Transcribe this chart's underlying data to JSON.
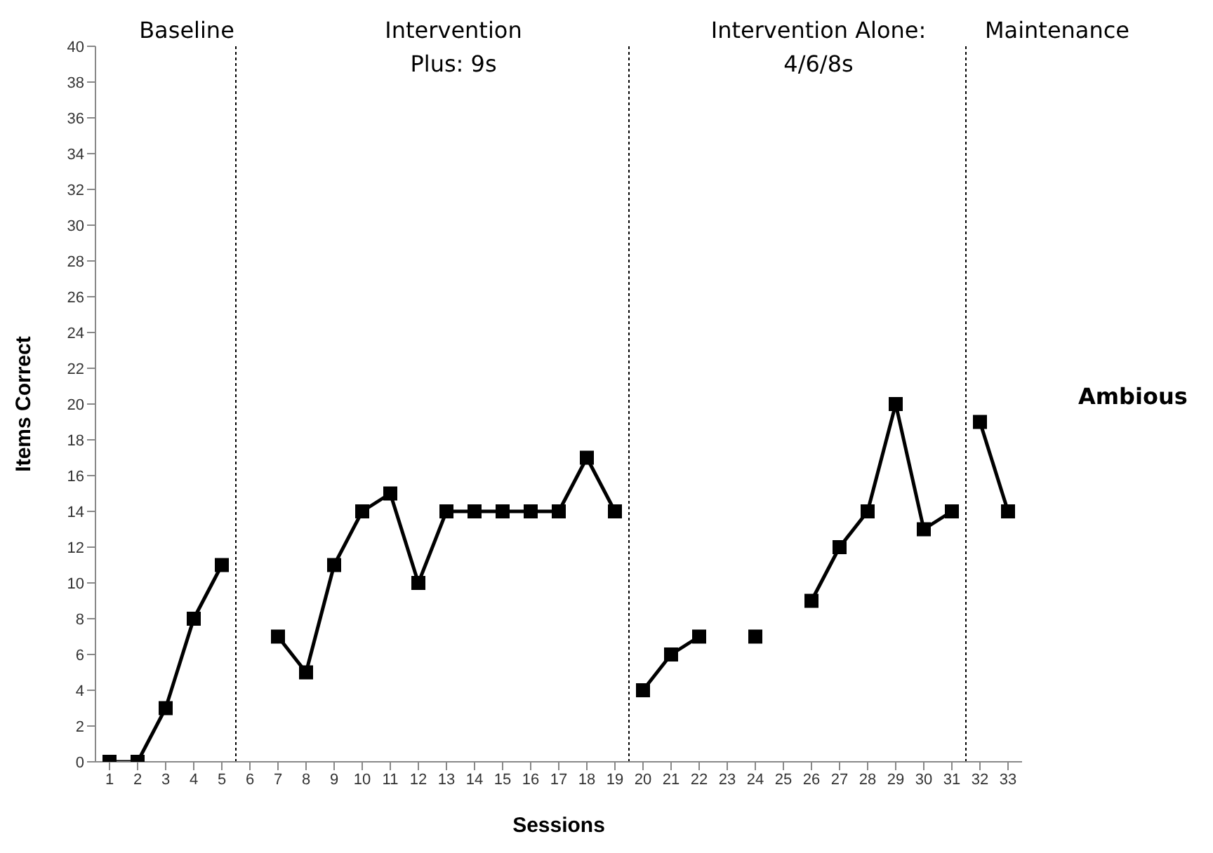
{
  "chart_data": {
    "type": "line",
    "xlabel": "Sessions",
    "ylabel": "Items Correct",
    "xlim": [
      0.5,
      33.5
    ],
    "xticks": [
      1,
      2,
      3,
      4,
      5,
      6,
      7,
      8,
      9,
      10,
      11,
      12,
      13,
      14,
      15,
      16,
      17,
      18,
      19,
      20,
      21,
      22,
      23,
      24,
      25,
      26,
      27,
      28,
      29,
      30,
      31,
      32,
      33
    ],
    "ylim": [
      0,
      40
    ],
    "yticks": [
      0,
      2,
      4,
      6,
      8,
      10,
      12,
      14,
      16,
      18,
      20,
      22,
      24,
      26,
      28,
      30,
      32,
      34,
      36,
      38,
      40
    ],
    "series": [
      {
        "color": "#000000",
        "x": [
          1,
          2,
          3,
          4,
          5
        ],
        "values": [
          0,
          0,
          3,
          8,
          11
        ]
      },
      {
        "color": "#000000",
        "x": [
          7,
          8,
          9,
          10,
          11,
          12,
          13,
          14,
          15,
          16,
          17,
          18,
          19
        ],
        "values": [
          7,
          5,
          11,
          14,
          15,
          10,
          14,
          14,
          14,
          14,
          14,
          17,
          14
        ]
      },
      {
        "color": "#000000",
        "x": [
          20,
          21,
          22,
          23,
          24,
          25,
          26,
          27,
          28,
          29,
          30,
          31
        ],
        "values": [
          4,
          6,
          7,
          null,
          7,
          null,
          9,
          12,
          14,
          20,
          13,
          14
        ]
      },
      {
        "color": "#000000",
        "x": [
          32,
          33
        ],
        "values": [
          19,
          14
        ]
      }
    ],
    "ref_lines": [
      {
        "axis": "x",
        "value": 5.5,
        "color": "#000000",
        "line_style": "dotted"
      },
      {
        "axis": "x",
        "value": 19.5,
        "color": "#000000",
        "line_style": "dotted"
      },
      {
        "axis": "x",
        "value": 31.5,
        "color": "#000000",
        "line_style": "dotted"
      }
    ],
    "annotations": [
      "Baseline",
      "Intervention\nPlus:  9s",
      "Intervention Alone:\n4/6/8s",
      "Maintenance",
      "Ambious"
    ],
    "marker": "square",
    "line_style": "solid",
    "grid": false,
    "legend": false
  }
}
